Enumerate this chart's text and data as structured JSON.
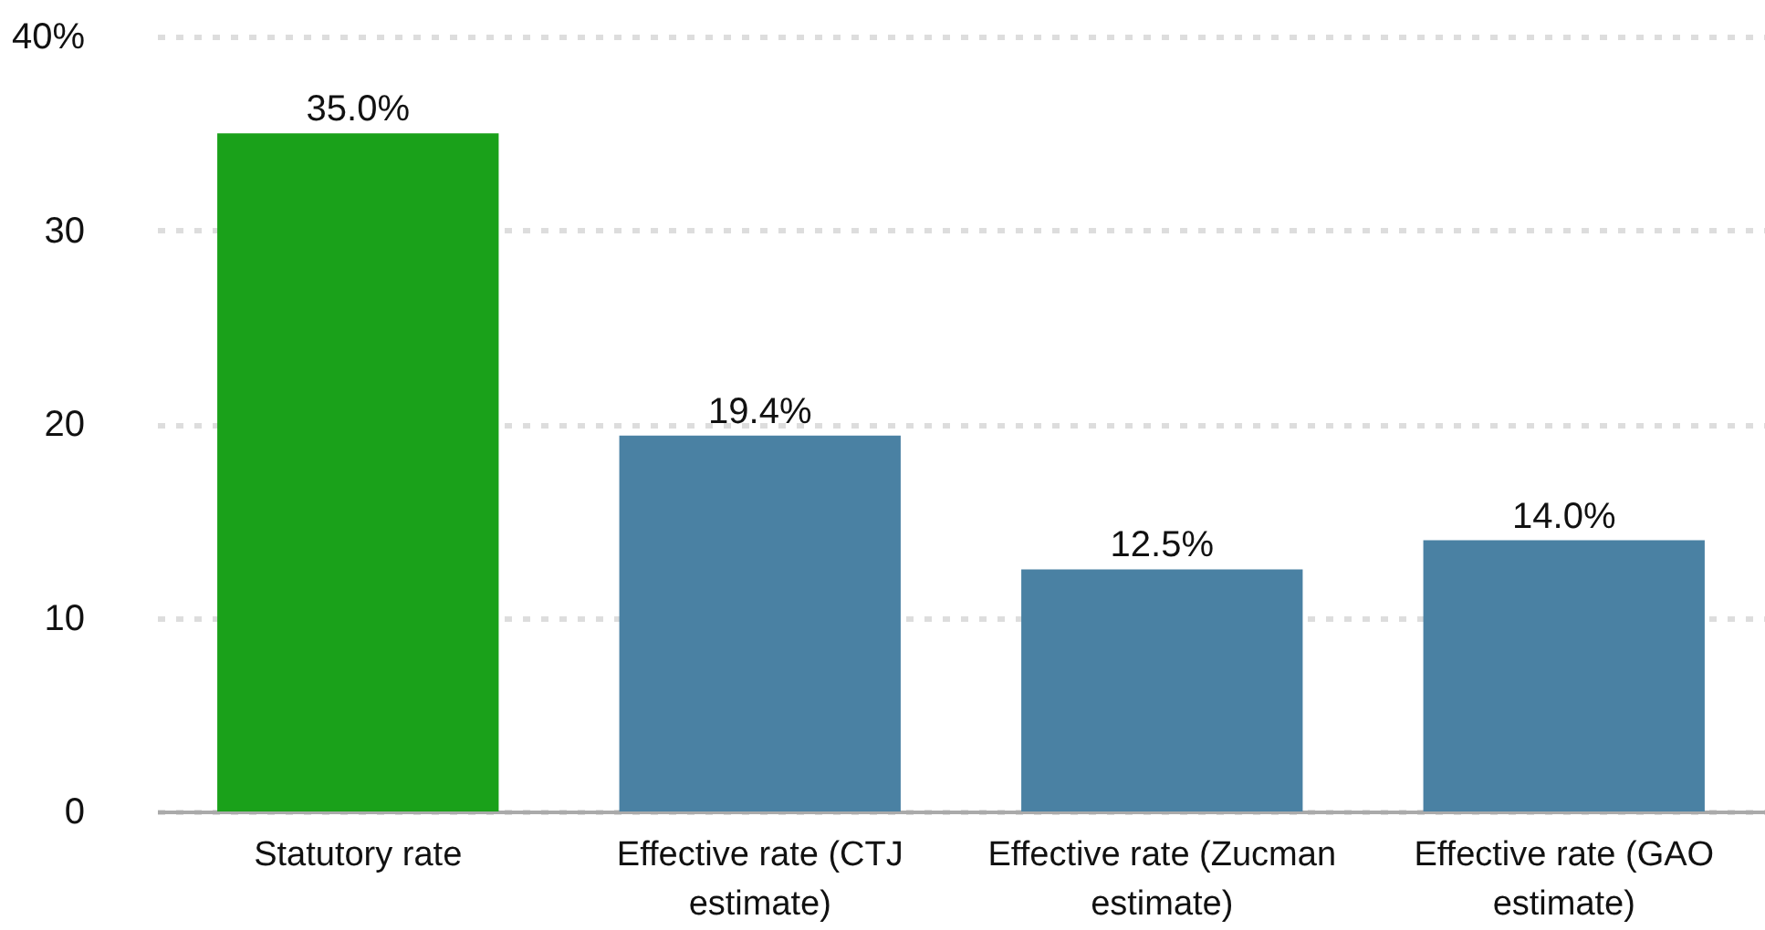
{
  "chart_data": {
    "type": "bar",
    "categories": [
      "Statutory rate",
      "Effective rate (CTJ estimate)",
      "Effective rate (Zucman estimate)",
      "Effective rate (GAO estimate)"
    ],
    "values": [
      35.0,
      19.4,
      12.5,
      14.0
    ],
    "colors": [
      "#1aa11a",
      "#4a81a3",
      "#4a81a3",
      "#4a81a3"
    ],
    "value_labels": [
      "35.0%",
      "19.4%",
      "12.5%",
      "14.0%"
    ],
    "ylim": [
      0,
      40
    ],
    "yticks": [
      0,
      10,
      20,
      30,
      {
        "value": 40,
        "label": "40%"
      }
    ],
    "grid": "y",
    "legend": false
  }
}
